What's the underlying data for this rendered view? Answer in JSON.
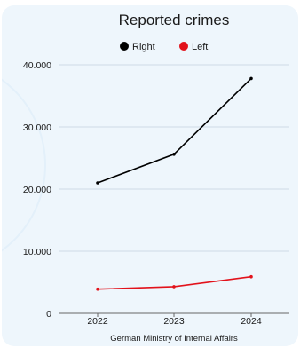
{
  "chart_data": {
    "type": "line",
    "title": "Reported crimes",
    "categories": [
      "2022",
      "2023",
      "2024"
    ],
    "series": [
      {
        "name": "Right",
        "values": [
          21000,
          25600,
          37800
        ],
        "color": "#000000"
      },
      {
        "name": "Left",
        "values": [
          3900,
          4300,
          5900
        ],
        "color": "#e2121b"
      }
    ],
    "y_ticks": [
      "0",
      "10.000",
      "20.000",
      "30.000",
      "40.000"
    ],
    "y_tick_values": [
      0,
      10000,
      20000,
      30000,
      40000
    ],
    "ylim": [
      0,
      40000
    ],
    "grid": true,
    "legend_position": "top-center",
    "source": "German Ministry of Internal Affairs"
  }
}
